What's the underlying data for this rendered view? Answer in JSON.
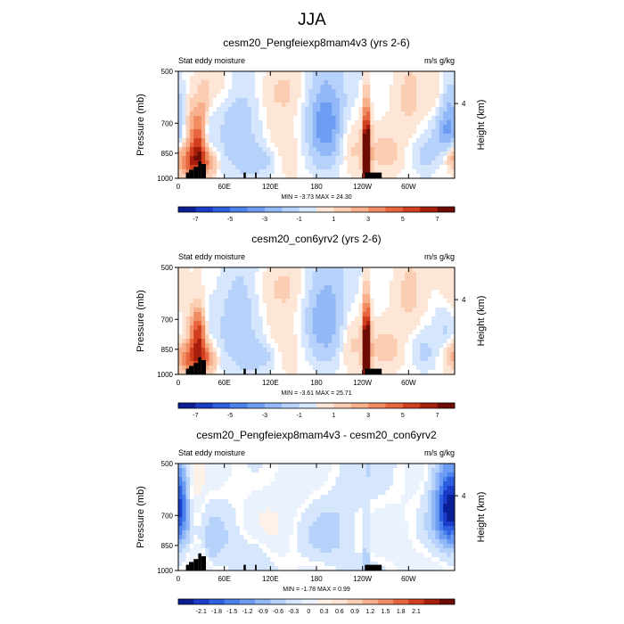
{
  "figure": {
    "title": "JJA"
  },
  "colors": {
    "full_palette": [
      "#0a1e96",
      "#1b3cc8",
      "#2d5fe0",
      "#4b82ee",
      "#6d9cf3",
      "#92b8f7",
      "#b6d1fa",
      "#d6e6fc",
      "#fde6d6",
      "#fbcdb2",
      "#f8b08c",
      "#f28d63",
      "#e8663d",
      "#d23f1e",
      "#a81e0c",
      "#6e0c04"
    ],
    "diff_palette": [
      "#0a1e96",
      "#1b3cc8",
      "#2d5fe0",
      "#4b82ee",
      "#6d9cf3",
      "#92b8f7",
      "#b6d1fa",
      "#d6e6fc",
      "#eaf2fd",
      "#fef1e7",
      "#fde6d6",
      "#fbcdb2",
      "#f8b08c",
      "#f28d63",
      "#e8663d",
      "#d23f1e",
      "#a81e0c",
      "#6e0c04"
    ],
    "land": "#000000"
  },
  "chart_data": [
    {
      "type": "heatmap",
      "title": "cesm20_Pengfeiexp8mam4v3 (yrs 2-6)",
      "subtitle_left": "Stat eddy moisture",
      "units": "m/s g/kg",
      "ylabel": "Pressure (mb)",
      "ylabel_right": "Height (km)",
      "xticks": [
        "0",
        "60E",
        "120E",
        "180",
        "120W",
        "60W"
      ],
      "yticks": [
        "500",
        "700",
        "850",
        "1000"
      ],
      "right_ticks": [
        "4"
      ],
      "stats": "MIN = -3.73  MAX = 24.30",
      "colorbar_labels": [
        "-7",
        "-5",
        "-3",
        "-1",
        "1",
        "3",
        "5",
        "7"
      ],
      "palette": "full",
      "land_columns": [
        [
          10,
          14,
          2
        ],
        [
          14,
          20,
          3
        ],
        [
          20,
          26,
          4
        ],
        [
          26,
          30,
          6
        ],
        [
          30,
          36,
          5
        ],
        [
          85,
          88,
          2
        ],
        [
          100,
          102,
          2
        ],
        [
          243,
          265,
          2
        ]
      ],
      "features": [
        {
          "lon": 18,
          "p": 900,
          "wl": 12,
          "wp": 70,
          "v": 5.0
        },
        {
          "lon": 28,
          "p": 820,
          "wl": 8,
          "wp": 90,
          "v": 4.0
        },
        {
          "lon": 22,
          "p": 700,
          "wl": 10,
          "wp": 80,
          "v": 2.5
        },
        {
          "lon": 38,
          "p": 760,
          "wl": 6,
          "wp": 100,
          "v": -2.0
        },
        {
          "lon": 35,
          "p": 620,
          "wl": 6,
          "wp": 70,
          "v": 1.5
        },
        {
          "lon": 40,
          "p": 900,
          "wl": 8,
          "wp": 60,
          "v": 2.5
        },
        {
          "lon": 245,
          "p": 880,
          "wl": 3,
          "wp": 180,
          "v": 9.0
        },
        {
          "lon": 246,
          "p": 850,
          "wl": 4,
          "wp": 140,
          "v": 3.0
        },
        {
          "lon": 190,
          "p": 690,
          "wl": 22,
          "wp": 190,
          "v": -3.0
        },
        {
          "lon": 192,
          "p": 700,
          "wl": 12,
          "wp": 100,
          "v": -1.0
        },
        {
          "lon": 350,
          "p": 700,
          "wl": 12,
          "wp": 120,
          "v": -3.5
        },
        {
          "lon": 340,
          "p": 610,
          "wl": 10,
          "wp": 80,
          "v": 1.5
        },
        {
          "lon": 355,
          "p": 870,
          "wl": 8,
          "wp": 50,
          "v": 2.0
        },
        {
          "lon": 270,
          "p": 860,
          "wl": 14,
          "wp": 80,
          "v": 1.5
        },
        {
          "lon": 80,
          "p": 720,
          "wl": 20,
          "wp": 200,
          "v": -1.8
        },
        {
          "lon": 60,
          "p": 550,
          "wl": 16,
          "wp": 60,
          "v": 0.8
        },
        {
          "lon": 135,
          "p": 560,
          "wl": 30,
          "wp": 70,
          "v": 1.2
        },
        {
          "lon": 150,
          "p": 800,
          "wl": 25,
          "wp": 140,
          "v": 1.0
        },
        {
          "lon": 110,
          "p": 880,
          "wl": 14,
          "wp": 60,
          "v": -1.5
        },
        {
          "lon": 225,
          "p": 820,
          "wl": 12,
          "wp": 120,
          "v": 1.5
        },
        {
          "lon": 300,
          "p": 600,
          "wl": 15,
          "wp": 120,
          "v": 1.2
        },
        {
          "lon": 320,
          "p": 880,
          "wl": 10,
          "wp": 80,
          "v": -1.2
        }
      ]
    },
    {
      "type": "heatmap",
      "title": "cesm20_con6yrv2 (yrs 2-6)",
      "subtitle_left": "Stat eddy moisture",
      "units": "m/s g/kg",
      "ylabel": "Pressure (mb)",
      "ylabel_right": "Height (km)",
      "xticks": [
        "0",
        "60E",
        "120E",
        "180",
        "120W",
        "60W"
      ],
      "yticks": [
        "500",
        "700",
        "850",
        "1000"
      ],
      "right_ticks": [
        "4"
      ],
      "stats": "MIN = -3.61  MAX = 25.71",
      "colorbar_labels": [
        "-7",
        "-5",
        "-3",
        "-1",
        "1",
        "3",
        "5",
        "7"
      ],
      "palette": "full",
      "land_columns": [
        [
          10,
          14,
          2
        ],
        [
          14,
          20,
          3
        ],
        [
          20,
          26,
          4
        ],
        [
          26,
          30,
          6
        ],
        [
          30,
          36,
          5
        ],
        [
          85,
          88,
          2
        ],
        [
          100,
          102,
          2
        ],
        [
          243,
          265,
          2
        ]
      ],
      "features": [
        {
          "lon": 18,
          "p": 900,
          "wl": 12,
          "wp": 70,
          "v": 4.5
        },
        {
          "lon": 28,
          "p": 800,
          "wl": 8,
          "wp": 100,
          "v": 4.5
        },
        {
          "lon": 24,
          "p": 720,
          "wl": 8,
          "wp": 60,
          "v": 2.0
        },
        {
          "lon": 38,
          "p": 760,
          "wl": 6,
          "wp": 100,
          "v": -1.5
        },
        {
          "lon": 40,
          "p": 900,
          "wl": 8,
          "wp": 60,
          "v": 2.5
        },
        {
          "lon": 245,
          "p": 880,
          "wl": 3,
          "wp": 180,
          "v": 9.0
        },
        {
          "lon": 246,
          "p": 850,
          "wl": 4,
          "wp": 140,
          "v": 3.0
        },
        {
          "lon": 190,
          "p": 680,
          "wl": 22,
          "wp": 180,
          "v": -3.0
        },
        {
          "lon": 350,
          "p": 720,
          "wl": 10,
          "wp": 100,
          "v": -1.2
        },
        {
          "lon": 355,
          "p": 600,
          "wl": 10,
          "wp": 80,
          "v": 1.2
        },
        {
          "lon": 355,
          "p": 880,
          "wl": 8,
          "wp": 50,
          "v": 1.8
        },
        {
          "lon": 270,
          "p": 860,
          "wl": 14,
          "wp": 80,
          "v": 1.5
        },
        {
          "lon": 80,
          "p": 720,
          "wl": 20,
          "wp": 200,
          "v": -1.8
        },
        {
          "lon": 135,
          "p": 560,
          "wl": 30,
          "wp": 70,
          "v": 1.2
        },
        {
          "lon": 150,
          "p": 800,
          "wl": 25,
          "wp": 140,
          "v": 1.0
        },
        {
          "lon": 110,
          "p": 880,
          "wl": 14,
          "wp": 60,
          "v": -1.5
        },
        {
          "lon": 225,
          "p": 820,
          "wl": 12,
          "wp": 120,
          "v": 1.5
        },
        {
          "lon": 300,
          "p": 600,
          "wl": 15,
          "wp": 120,
          "v": 1.2
        },
        {
          "lon": 320,
          "p": 880,
          "wl": 10,
          "wp": 80,
          "v": -1.2
        }
      ]
    },
    {
      "type": "heatmap",
      "title": "cesm20_Pengfeiexp8mam4v3 - cesm20_con6yrv2",
      "subtitle_left": "Stat eddy moisture",
      "units": "m/s g/kg",
      "ylabel": "Pressure (mb)",
      "ylabel_right": "Height (km)",
      "xticks": [
        "0",
        "60E",
        "120E",
        "180",
        "120W",
        "60W"
      ],
      "yticks": [
        "500",
        "700",
        "850",
        "1000"
      ],
      "right_ticks": [
        "4"
      ],
      "stats": "MIN = -1.78  MAX =  0.99",
      "colorbar_labels": [
        "-2.1",
        "-1.8",
        "-1.5",
        "-1.2",
        "-0.9",
        "-0.6",
        "-0.3",
        "0",
        "0.3",
        "0.6",
        "0.9",
        "1.2",
        "1.5",
        "1.8",
        "2.1"
      ],
      "palette": "diff",
      "land_columns": [
        [
          10,
          14,
          2
        ],
        [
          14,
          20,
          3
        ],
        [
          20,
          26,
          4
        ],
        [
          26,
          30,
          6
        ],
        [
          30,
          36,
          5
        ],
        [
          85,
          88,
          2
        ],
        [
          100,
          102,
          2
        ],
        [
          243,
          265,
          2
        ]
      ],
      "features": [
        {
          "lon": 355,
          "p": 680,
          "wl": 12,
          "wp": 110,
          "v": -1.7
        },
        {
          "lon": 350,
          "p": 600,
          "wl": 18,
          "wp": 150,
          "v": -0.8
        },
        {
          "lon": 22,
          "p": 620,
          "wl": 8,
          "wp": 140,
          "v": 0.5
        },
        {
          "lon": 28,
          "p": 900,
          "wl": 10,
          "wp": 70,
          "v": 0.4
        },
        {
          "lon": 245,
          "p": 880,
          "wl": 3,
          "wp": 160,
          "v": -0.5
        },
        {
          "lon": 130,
          "p": 620,
          "wl": 40,
          "wp": 200,
          "v": 0.25
        },
        {
          "lon": 200,
          "p": 750,
          "wl": 30,
          "wp": 200,
          "v": -0.3
        },
        {
          "lon": 60,
          "p": 800,
          "wl": 20,
          "wp": 150,
          "v": -0.25
        },
        {
          "lon": 300,
          "p": 850,
          "wl": 25,
          "wp": 150,
          "v": 0.2
        },
        {
          "lon": 100,
          "p": 880,
          "wl": 15,
          "wp": 80,
          "v": -0.35
        },
        {
          "lon": 40,
          "p": 880,
          "wl": 8,
          "wp": 60,
          "v": -0.3
        }
      ]
    }
  ]
}
